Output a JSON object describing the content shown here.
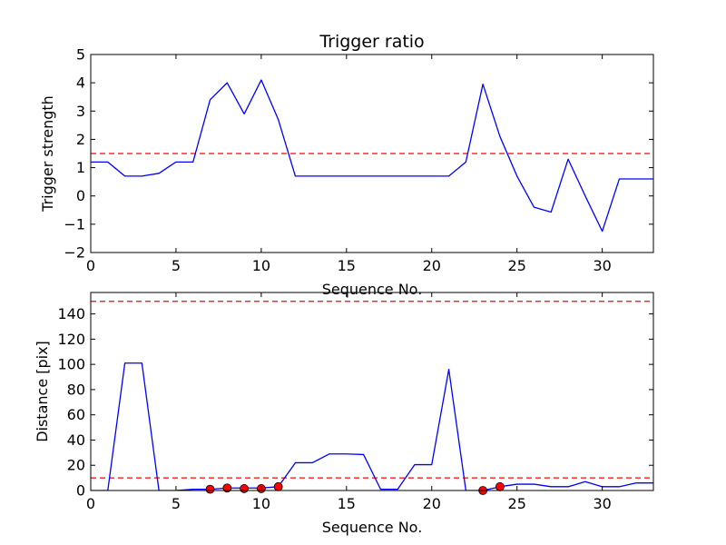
{
  "chart_data": [
    {
      "type": "line",
      "title": "Trigger ratio",
      "xlabel": "Sequence No.",
      "ylabel": "Trigger strength",
      "xlim": [
        0,
        33
      ],
      "ylim": [
        -2,
        5
      ],
      "xticks": [
        0,
        5,
        10,
        15,
        20,
        25,
        30
      ],
      "yticks": [
        -2,
        -1,
        0,
        1,
        2,
        3,
        4,
        5
      ],
      "grid": false,
      "series": [
        {
          "style": "solid",
          "color": "#0000ff",
          "x": [
            0,
            1,
            2,
            3,
            4,
            5,
            6,
            7,
            8,
            9,
            10,
            11,
            12,
            21,
            22,
            23,
            24,
            25,
            26,
            27,
            28,
            29,
            30,
            31,
            32,
            33
          ],
          "y": [
            1.2,
            1.2,
            0.7,
            0.7,
            0.8,
            1.2,
            1.2,
            3.4,
            4.0,
            2.9,
            4.1,
            2.7,
            0.7,
            0.7,
            1.2,
            3.95,
            2.1,
            0.7,
            -0.4,
            -0.57,
            1.3,
            0.0,
            -1.25,
            0.6,
            0.6,
            0.6
          ]
        }
      ],
      "hlines": [
        {
          "y": 1.5,
          "color": "#ff0000",
          "style": "dashed"
        }
      ]
    },
    {
      "type": "line",
      "title": "",
      "xlabel": "Sequence No.",
      "ylabel": "Distance [pix]",
      "xlim": [
        0,
        33
      ],
      "ylim": [
        0,
        157
      ],
      "xticks": [
        0,
        5,
        10,
        15,
        20,
        25,
        30
      ],
      "yticks": [
        0,
        20,
        40,
        60,
        80,
        100,
        120,
        140
      ],
      "grid": false,
      "series": [
        {
          "style": "solid",
          "color": "#0000ff",
          "x": [
            0,
            1,
            2,
            3,
            4,
            5,
            6,
            7,
            8,
            9,
            10,
            11,
            12,
            13,
            14,
            15,
            16,
            17,
            18,
            19,
            20,
            21,
            22,
            23,
            24,
            25,
            26,
            27,
            28,
            29,
            30,
            31,
            32,
            33
          ],
          "y": [
            0,
            0,
            101,
            101,
            0,
            0,
            1,
            1,
            2,
            2,
            2,
            3,
            22,
            22,
            29,
            29,
            28.5,
            1,
            1,
            20.5,
            20.5,
            96,
            0,
            0,
            3,
            5,
            5,
            3,
            3,
            7,
            3,
            3,
            6,
            6
          ]
        },
        {
          "style": "markers",
          "color": "#ff0000",
          "x": [
            7,
            8,
            9,
            10,
            11,
            23,
            24
          ],
          "y": [
            1,
            2,
            1.5,
            1.5,
            3,
            0,
            3
          ]
        }
      ],
      "hlines": [
        {
          "y": 150,
          "color": "#ff0000",
          "style": "dashed"
        },
        {
          "y": 10,
          "color": "#ff0000",
          "style": "dashed"
        }
      ]
    }
  ]
}
